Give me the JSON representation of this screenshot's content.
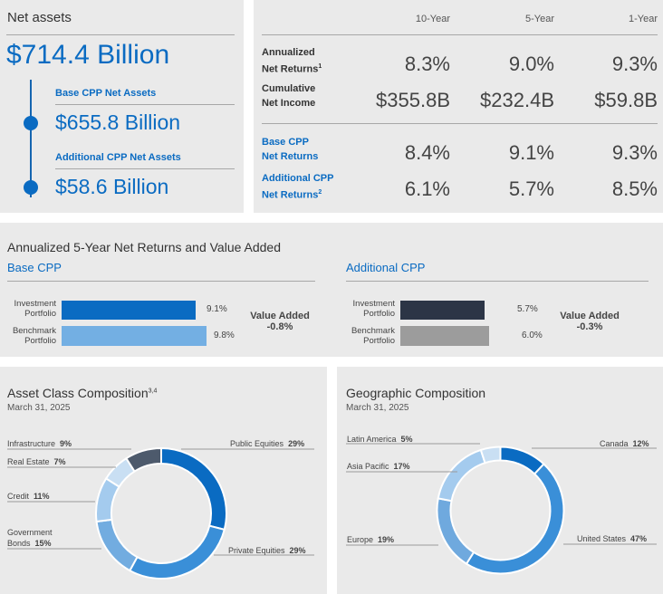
{
  "net_assets": {
    "title": "Net assets",
    "total": "$714.4 Billion",
    "base_label": "Base CPP Net Assets",
    "base_value": "$655.8 Billion",
    "additional_label": "Additional CPP Net Assets",
    "additional_value": "$58.6 Billion"
  },
  "returns_table": {
    "columns": [
      "10-Year",
      "5-Year",
      "1-Year"
    ],
    "rows": [
      {
        "label_line1": "Annualized",
        "label_line2": "Net Returns",
        "sup": "1",
        "values": [
          "8.3%",
          "9.0%",
          "9.3%"
        ]
      },
      {
        "label_line1": "Cumulative",
        "label_line2": "Net Income",
        "sup": "",
        "values": [
          "$355.8B",
          "$232.4B",
          "$59.8B"
        ]
      },
      {
        "label_line1": "Base CPP",
        "label_line2": "Net Returns",
        "sup": "",
        "values": [
          "8.4%",
          "9.1%",
          "9.3%"
        ]
      },
      {
        "label_line1": "Additional CPP",
        "label_line2": "Net Returns",
        "sup": "2",
        "values": [
          "6.1%",
          "5.7%",
          "8.5%"
        ]
      }
    ]
  },
  "value_added": {
    "title": "Annualized 5-Year Net Returns and Value Added",
    "base": {
      "title": "Base CPP",
      "investment_label_1": "Investment",
      "investment_label_2": "Portfolio",
      "benchmark_label_1": "Benchmark",
      "benchmark_label_2": "Portfolio",
      "investment_value": "9.1%",
      "benchmark_value": "9.8%",
      "value_added_label": "Value Added",
      "value_added": "-0.8%"
    },
    "additional": {
      "title": "Additional CPP",
      "investment_label_1": "Investment",
      "investment_label_2": "Portfolio",
      "benchmark_label_1": "Benchmark",
      "benchmark_label_2": "Portfolio",
      "investment_value": "5.7%",
      "benchmark_value": "6.0%",
      "value_added_label": "Value Added",
      "value_added": "-0.3%"
    }
  },
  "asset_class": {
    "title": "Asset Class Composition",
    "title_sup": "3,4",
    "date": "March 31, 2025"
  },
  "geographic": {
    "title": "Geographic Composition",
    "date": "March 31, 2025"
  },
  "colors": {
    "accent": "#0a6bc2",
    "panel": "#eaeaea",
    "base_investment": "#0a6bc2",
    "base_benchmark": "#73afe3",
    "add_investment": "#2c3546",
    "add_benchmark": "#9c9c9c"
  },
  "chart_data": [
    {
      "type": "bar",
      "title": "Base CPP",
      "categories": [
        "Investment Portfolio",
        "Benchmark Portfolio"
      ],
      "values": [
        9.1,
        9.8
      ],
      "value_labels": [
        "9.1%",
        "9.8%"
      ],
      "xlim": [
        0,
        10
      ]
    },
    {
      "type": "bar",
      "title": "Additional CPP",
      "categories": [
        "Investment Portfolio",
        "Benchmark Portfolio"
      ],
      "values": [
        5.7,
        6.0
      ],
      "value_labels": [
        "5.7%",
        "6.0%"
      ],
      "xlim": [
        0,
        10
      ]
    },
    {
      "type": "pie",
      "title": "Asset Class Composition",
      "slices": [
        {
          "name": "Public Equities",
          "pct_label": "29%",
          "value": 29,
          "color": "#0a6bc2"
        },
        {
          "name": "Private Equities",
          "pct_label": "29%",
          "value": 29,
          "color": "#3a8fd8"
        },
        {
          "name": "Government Bonds",
          "name_line1": "Government",
          "name_line2": "Bonds",
          "pct_label": "15%",
          "value": 15,
          "color": "#72ace0"
        },
        {
          "name": "Credit",
          "pct_label": "11%",
          "value": 11,
          "color": "#a4cbee"
        },
        {
          "name": "Real Estate",
          "pct_label": "7%",
          "value": 7,
          "color": "#c9dff3"
        },
        {
          "name": "Infrastructure",
          "pct_label": "9%",
          "value": 9,
          "color": "#4d5a6c"
        }
      ]
    },
    {
      "type": "pie",
      "title": "Geographic Composition",
      "slices": [
        {
          "name": "Canada",
          "pct_label": "12%",
          "value": 12,
          "color": "#0a6bc2"
        },
        {
          "name": "United States",
          "pct_label": "47%",
          "value": 47,
          "color": "#3a8fd8"
        },
        {
          "name": "Europe",
          "pct_label": "19%",
          "value": 19,
          "color": "#6fa9de"
        },
        {
          "name": "Asia Pacific",
          "pct_label": "17%",
          "value": 17,
          "color": "#a4cbee"
        },
        {
          "name": "Latin America",
          "pct_label": "5%",
          "value": 5,
          "color": "#c9dff3"
        }
      ]
    }
  ]
}
